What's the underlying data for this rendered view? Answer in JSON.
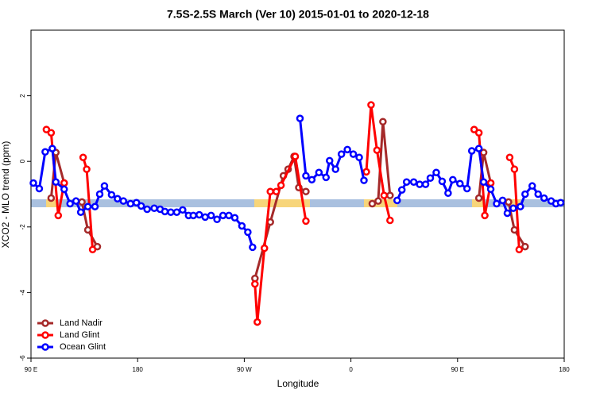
{
  "chart_data": {
    "type": "line",
    "title": "7.5S-2.5S March (Ver 10)   2015-01-01 to 2020-12-18",
    "x_label": "Longitude",
    "y_label": "XCO2 - MLO trend (ppm)",
    "xlim": [
      90,
      540
    ],
    "ylim": [
      -6,
      4
    ],
    "xticks": [
      {
        "value": 90,
        "label": "90 E"
      },
      180,
      {
        "value": 270,
        "label": "90 W"
      },
      {
        "value": 360,
        "label": "0"
      },
      {
        "value": 450,
        "label": "90 E"
      },
      {
        "value": 540,
        "label": "180"
      }
    ],
    "yticks": [
      -6,
      -4,
      -2,
      0,
      2
    ],
    "legend": "bottom-left",
    "series": [
      {
        "name": "Land Nadir",
        "color": "#a52a2a",
        "x": [
          107,
          111,
          118,
          null,
          133,
          138,
          146,
          null,
          279,
          292,
          303,
          307,
          312,
          316,
          322,
          null,
          378,
          383,
          387,
          393,
          null,
          468,
          472,
          478,
          null,
          493,
          498,
          507
        ],
        "values": [
          -1.12,
          0.27,
          -0.66,
          null,
          -1.24,
          -2.09,
          -2.6,
          null,
          -3.57,
          -1.85,
          -0.44,
          -0.24,
          0.15,
          -0.8,
          -0.92,
          null,
          -1.29,
          -1.21,
          1.21,
          -1.04,
          null,
          -1.12,
          0.27,
          -0.66,
          null,
          -1.24,
          -2.09,
          -2.6
        ]
      },
      {
        "name": "Land Glint",
        "color": "#ff0000",
        "x": [
          103,
          107,
          113,
          118,
          null,
          134,
          137,
          142,
          null,
          279,
          281,
          287,
          292,
          297,
          301,
          313,
          322,
          null,
          373,
          377,
          382,
          388,
          393,
          null,
          464,
          468,
          473,
          478,
          null,
          494,
          498,
          502
        ],
        "values": [
          0.97,
          0.87,
          -1.65,
          -0.66,
          null,
          0.12,
          -0.24,
          -2.69,
          null,
          -3.74,
          -4.9,
          -2.65,
          -0.92,
          -0.92,
          -0.73,
          0.15,
          -1.82,
          null,
          -0.32,
          1.72,
          0.34,
          -1.04,
          -1.8,
          null,
          0.97,
          0.87,
          -1.65,
          -0.66,
          null,
          0.12,
          -0.24,
          -2.69
        ]
      },
      {
        "name": "Ocean Glint",
        "color": "#0000ff",
        "x": [
          92,
          97,
          102,
          108,
          111,
          118,
          123,
          128,
          132,
          138,
          144,
          148,
          152,
          158,
          163,
          168,
          174,
          179,
          183,
          188,
          194,
          199,
          203,
          208,
          213,
          218,
          223,
          227,
          232,
          237,
          242,
          247,
          252,
          257,
          262,
          268,
          273,
          277,
          null,
          317,
          322,
          327,
          333,
          339,
          342,
          347,
          352,
          357,
          362,
          367,
          371,
          null,
          399,
          403,
          407,
          413,
          418,
          423,
          427,
          432,
          437,
          442,
          446,
          452,
          458,
          462,
          468,
          472,
          478,
          483,
          488,
          492,
          497,
          503,
          507,
          513,
          518,
          523,
          529,
          533,
          537
        ],
        "values": [
          -0.66,
          -0.83,
          0.29,
          0.39,
          -0.63,
          -0.85,
          -1.29,
          -1.21,
          -1.55,
          -1.38,
          -1.38,
          -1.0,
          -0.75,
          -1.02,
          -1.14,
          -1.21,
          -1.29,
          -1.26,
          -1.36,
          -1.46,
          -1.43,
          -1.46,
          -1.53,
          -1.55,
          -1.55,
          -1.48,
          -1.65,
          -1.65,
          -1.63,
          -1.7,
          -1.65,
          -1.77,
          -1.65,
          -1.65,
          -1.72,
          -1.97,
          -2.16,
          -2.62,
          null,
          1.31,
          -0.44,
          -0.56,
          -0.34,
          -0.49,
          0.02,
          -0.24,
          0.22,
          0.36,
          0.22,
          0.12,
          -0.58,
          null,
          -1.19,
          -0.87,
          -0.63,
          -0.63,
          -0.7,
          -0.7,
          -0.51,
          -0.34,
          -0.61,
          -0.97,
          -0.56,
          -0.68,
          -0.83,
          0.32,
          0.39,
          -0.63,
          -0.85,
          -1.29,
          -1.19,
          -1.58,
          -1.43,
          -1.38,
          -1.0,
          -0.75,
          -1.0,
          -1.12,
          -1.21,
          -1.29,
          -1.26
        ]
      }
    ]
  }
}
